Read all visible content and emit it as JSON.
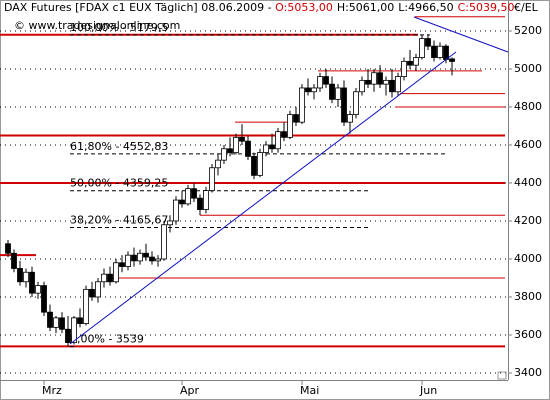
{
  "chart_data": {
    "type": "candlestick",
    "title": "DAX Futures [FDAX c1 EUX  Täglich] 08.06.2009 - ",
    "quote": {
      "open": "O:5053,00",
      "high": "H:5061,00",
      "low": "L:4966,50",
      "close": "C:5039,50"
    },
    "watermark": "© www.tradesignalonline.com",
    "y_unit": "€/EL",
    "ylim": [
      3363,
      5284
    ],
    "yticks": [
      3400,
      3600,
      3800,
      4000,
      4200,
      4400,
      4600,
      4800,
      5000,
      5200
    ],
    "categories": [
      null,
      null,
      null,
      null,
      null,
      null,
      "Mrz",
      null,
      null,
      null,
      null,
      null,
      null,
      null,
      null,
      null,
      null,
      null,
      null,
      null,
      null,
      null,
      null,
      null,
      null,
      null,
      null,
      null,
      null,
      "Apr",
      null,
      null,
      null,
      null,
      null,
      null,
      null,
      null,
      null,
      null,
      null,
      null,
      null,
      null,
      null,
      null,
      null,
      null,
      null,
      "Mai",
      null,
      null,
      null,
      null,
      null,
      null,
      null,
      null,
      null,
      null,
      null,
      null,
      null,
      null,
      null,
      null,
      null,
      null,
      null,
      "Jun",
      null,
      null,
      null,
      null,
      null
    ],
    "open": [
      4080,
      4030,
      3950,
      3880,
      3930,
      3820,
      3860,
      3720,
      3640,
      3690,
      3630,
      3560,
      3690,
      3660,
      3840,
      3800,
      3880,
      3920,
      3880,
      3980,
      3960,
      4020,
      3990,
      4030,
      4010,
      3990,
      4000,
      4180,
      4200,
      4310,
      4290,
      4370,
      4320,
      4260,
      4360,
      4480,
      4520,
      4580,
      4560,
      4640,
      4620,
      4540,
      4440,
      4560,
      4600,
      4580,
      4670,
      4640,
      4760,
      4720,
      4900,
      4880,
      4900,
      4960,
      4920,
      4840,
      4900,
      4720,
      4760,
      4880,
      4940,
      4920,
      4980,
      4920,
      4940,
      4880,
      4960,
      5040,
      5020,
      5060,
      5160,
      5120,
      5060,
      5120,
      5053
    ],
    "high": [
      4100,
      4050,
      3990,
      3950,
      3960,
      3880,
      3880,
      3760,
      3700,
      3720,
      3700,
      3700,
      3740,
      3860,
      3880,
      3900,
      3950,
      3960,
      4000,
      4020,
      4040,
      4060,
      4050,
      4080,
      4040,
      4020,
      4200,
      4230,
      4330,
      4360,
      4390,
      4400,
      4340,
      4380,
      4500,
      4550,
      4600,
      4640,
      4660,
      4710,
      4650,
      4560,
      4580,
      4620,
      4660,
      4690,
      4720,
      4780,
      4800,
      4920,
      4950,
      4920,
      4980,
      5000,
      4960,
      4920,
      4940,
      4780,
      4900,
      4960,
      5000,
      5000,
      5020,
      4960,
      5000,
      4980,
      5060,
      5100,
      5080,
      5180,
      5179.5,
      5150,
      5140,
      5130,
      5061
    ],
    "low": [
      4010,
      3930,
      3860,
      3850,
      3800,
      3790,
      3700,
      3620,
      3610,
      3610,
      3539,
      3550,
      3640,
      3650,
      3780,
      3770,
      3850,
      3860,
      3870,
      3930,
      3940,
      3960,
      3970,
      3990,
      3970,
      3960,
      3990,
      4140,
      4180,
      4270,
      4280,
      4300,
      4230,
      4240,
      4350,
      4440,
      4500,
      4540,
      4550,
      4600,
      4520,
      4420,
      4430,
      4540,
      4560,
      4560,
      4620,
      4630,
      4700,
      4710,
      4860,
      4840,
      4880,
      4900,
      4820,
      4800,
      4700,
      4660,
      4740,
      4860,
      4900,
      4880,
      4900,
      4860,
      4850,
      4860,
      4940,
      5000,
      4990,
      5050,
      5100,
      5040,
      5050,
      5030,
      4966.5
    ],
    "close": [
      4030,
      3950,
      3880,
      3930,
      3820,
      3860,
      3720,
      3640,
      3690,
      3630,
      3560,
      3690,
      3660,
      3840,
      3800,
      3880,
      3920,
      3880,
      3980,
      3960,
      4020,
      3990,
      4030,
      4010,
      3990,
      4000,
      4180,
      4200,
      4310,
      4290,
      4370,
      4320,
      4260,
      4360,
      4480,
      4520,
      4580,
      4560,
      4640,
      4620,
      4540,
      4440,
      4560,
      4600,
      4580,
      4670,
      4640,
      4760,
      4720,
      4900,
      4880,
      4900,
      4960,
      4920,
      4840,
      4900,
      4720,
      4760,
      4880,
      4940,
      4920,
      4980,
      4920,
      4940,
      4880,
      4960,
      5040,
      5020,
      5060,
      5160,
      5120,
      5060,
      5120,
      5050,
      5039.5
    ],
    "up_color": "#ffffff",
    "down_color": "#000000",
    "fib_levels": [
      {
        "value": 5179.5,
        "label": "100,00% - 5179,5"
      },
      {
        "value": 4552.83,
        "label": "61,80% - 4552,83"
      },
      {
        "value": 4359.25,
        "label": "50,00% - 4359,25"
      },
      {
        "value": 4165.67,
        "label": "38,20% - 4165,67"
      },
      {
        "value": 3539,
        "label": "0,00% - 3539"
      }
    ],
    "levels": [
      5275,
      5180,
      4990,
      4870,
      4800,
      4720,
      4650,
      4400,
      4230,
      4020,
      3900,
      3540
    ],
    "level_color": "#d00000",
    "grid": true
  }
}
